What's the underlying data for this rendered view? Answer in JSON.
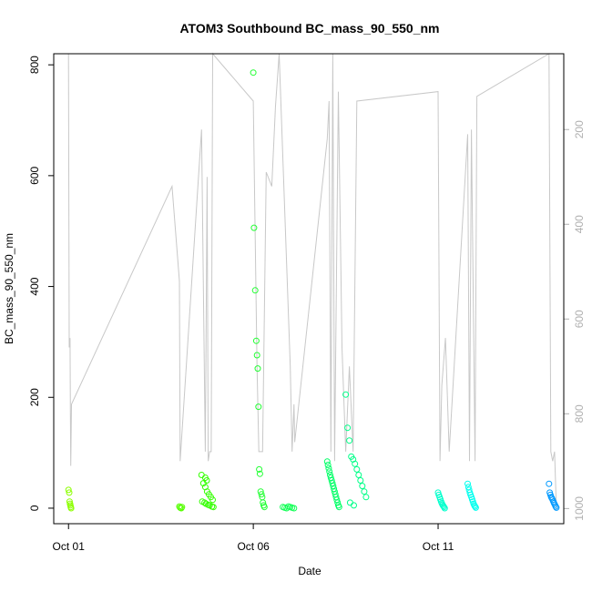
{
  "chart_data": {
    "type": "scatter",
    "title": "ATOM3 Southbound BC_mass_90_550_nm",
    "xlabel": "Date",
    "ylabel": "BC_mass_90_550_nm",
    "x_ticks": [
      "Oct 01",
      "Oct 06",
      "Oct 11"
    ],
    "x_tick_days": [
      1,
      6,
      11
    ],
    "xlim": [
      0.6,
      14.4
    ],
    "ylim": [
      -28,
      820
    ],
    "y_ticks": [
      0,
      200,
      400,
      600,
      800
    ],
    "right_axis": {
      "ticks": [
        200,
        400,
        600,
        800,
        1000
      ],
      "range_top_to_bottom": [
        40,
        1032
      ],
      "color": "#b0b0b0"
    },
    "altitude_trace": [
      [
        1.0,
        0
      ],
      [
        1.02,
        660
      ],
      [
        1.04,
        640
      ],
      [
        1.05,
        800
      ],
      [
        1.06,
        910
      ],
      [
        1.08,
        780
      ],
      [
        3.8,
        320
      ],
      [
        4.0,
        520
      ],
      [
        4.02,
        900
      ],
      [
        4.6,
        200
      ],
      [
        4.7,
        880
      ],
      [
        4.75,
        300
      ],
      [
        4.78,
        900
      ],
      [
        4.82,
        880
      ],
      [
        4.86,
        880
      ],
      [
        4.9,
        0
      ],
      [
        6.0,
        140
      ],
      [
        6.1,
        700
      ],
      [
        6.15,
        880
      ],
      [
        6.2,
        880
      ],
      [
        6.25,
        880
      ],
      [
        6.35,
        290
      ],
      [
        6.5,
        320
      ],
      [
        6.6,
        150
      ],
      [
        6.7,
        0
      ],
      [
        7.0,
        700
      ],
      [
        7.05,
        880
      ],
      [
        7.1,
        780
      ],
      [
        7.12,
        860
      ],
      [
        8.0,
        220
      ],
      [
        8.05,
        140
      ],
      [
        8.1,
        880
      ],
      [
        8.15,
        0
      ],
      [
        8.2,
        900
      ],
      [
        8.3,
        120
      ],
      [
        8.4,
        660
      ],
      [
        8.5,
        880
      ],
      [
        8.6,
        700
      ],
      [
        8.7,
        880
      ],
      [
        8.8,
        140
      ],
      [
        11.0,
        120
      ],
      [
        11.05,
        900
      ],
      [
        11.1,
        740
      ],
      [
        11.2,
        640
      ],
      [
        11.3,
        880
      ],
      [
        11.8,
        210
      ],
      [
        11.85,
        900
      ],
      [
        11.9,
        200
      ],
      [
        12.0,
        900
      ],
      [
        12.05,
        130
      ],
      [
        14.0,
        40
      ],
      [
        14.05,
        880
      ],
      [
        14.1,
        900
      ],
      [
        14.15,
        880
      ],
      [
        14.2,
        1000
      ]
    ],
    "series": [
      {
        "x": [
          1.0,
          1.02,
          1.03,
          1.04,
          1.05,
          1.06,
          1.07
        ],
        "y": [
          33,
          28,
          12,
          8,
          5,
          2,
          0
        ],
        "color": "#8cff00"
      },
      {
        "x": [
          4.0,
          4.02,
          4.05,
          4.07
        ],
        "y": [
          3,
          1,
          0,
          2
        ],
        "color": "#55ff00"
      },
      {
        "x": [
          4.6,
          4.65,
          4.7,
          4.75,
          4.8,
          4.85,
          4.9,
          4.62,
          4.68,
          4.72,
          4.78,
          4.82,
          4.88,
          4.92,
          4.7,
          4.74
        ],
        "y": [
          60,
          45,
          38,
          30,
          25,
          20,
          15,
          12,
          10,
          8,
          6,
          5,
          3,
          2,
          55,
          50
        ],
        "color": "#33ff00"
      },
      {
        "x": [
          6.0,
          6.02,
          6.05,
          6.08,
          6.1,
          6.12,
          6.14,
          6.16,
          6.18,
          6.2,
          6.22,
          6.24,
          6.26,
          6.28,
          6.3
        ],
        "y": [
          786,
          506,
          393,
          302,
          276,
          252,
          183,
          70,
          62,
          30,
          25,
          20,
          10,
          5,
          2
        ],
        "color": "#22ff33"
      },
      {
        "x": [
          6.8,
          6.85,
          6.9,
          6.95,
          7.0,
          7.05,
          7.1
        ],
        "y": [
          2,
          1,
          0,
          3,
          2,
          1,
          0
        ],
        "color": "#11ff55"
      },
      {
        "x": [
          8.0,
          8.02,
          8.04,
          8.06,
          8.08,
          8.1,
          8.12,
          8.14,
          8.16,
          8.18,
          8.2,
          8.22,
          8.24,
          8.26,
          8.28,
          8.3,
          8.32
        ],
        "y": [
          84,
          78,
          72,
          66,
          60,
          55,
          50,
          45,
          40,
          35,
          30,
          25,
          20,
          15,
          10,
          5,
          2
        ],
        "color": "#00ff66"
      },
      {
        "x": [
          8.5,
          8.55,
          8.6,
          8.65,
          8.7,
          8.75,
          8.8,
          8.85,
          8.9,
          8.95,
          9.0,
          9.05,
          8.62,
          8.72
        ],
        "y": [
          205,
          145,
          122,
          93,
          88,
          80,
          70,
          60,
          50,
          40,
          30,
          20,
          10,
          5
        ],
        "color": "#00ff88"
      },
      {
        "x": [
          11.0,
          11.02,
          11.04,
          11.06,
          11.08,
          11.1,
          11.12,
          11.14,
          11.16,
          11.18
        ],
        "y": [
          28,
          24,
          20,
          16,
          12,
          9,
          6,
          4,
          2,
          0
        ],
        "color": "#00ffcc"
      },
      {
        "x": [
          11.8,
          11.82,
          11.84,
          11.86,
          11.88,
          11.9,
          11.92,
          11.94,
          11.96,
          11.98,
          12.0,
          12.02
        ],
        "y": [
          44,
          38,
          33,
          28,
          24,
          20,
          16,
          12,
          8,
          5,
          3,
          1
        ],
        "color": "#00ffee"
      },
      {
        "x": [
          14.0,
          14.02,
          14.04,
          14.06,
          14.08,
          14.1,
          14.12,
          14.14,
          14.16,
          14.18,
          14.2
        ],
        "y": [
          44,
          28,
          24,
          20,
          18,
          15,
          12,
          9,
          6,
          3,
          1
        ],
        "color": "#0099ff"
      }
    ]
  }
}
